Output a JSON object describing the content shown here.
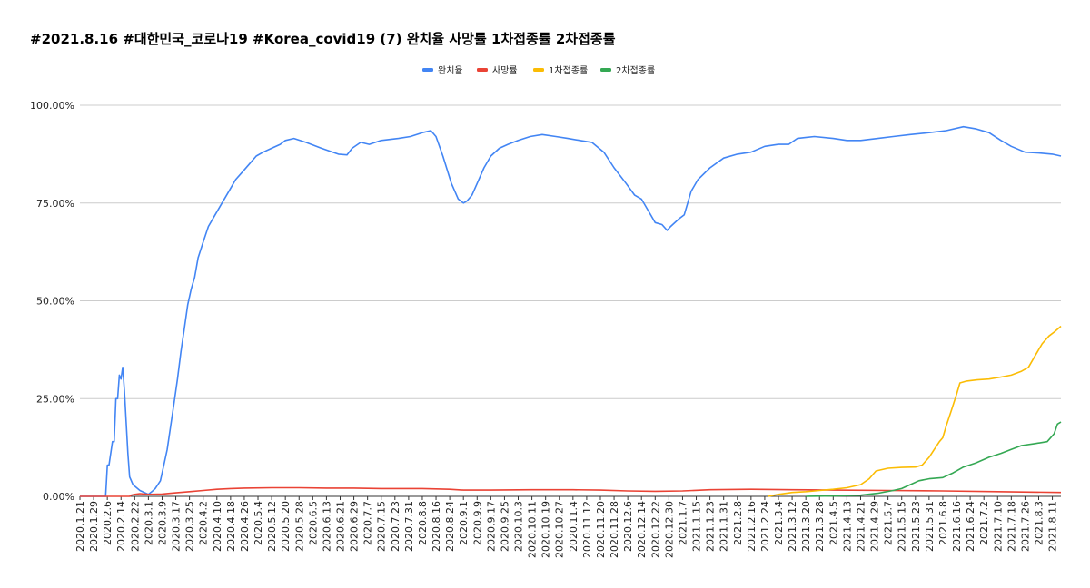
{
  "chart_data": {
    "type": "line",
    "title": "#2021.8.16 #대한민국_코로나19 #Korea_covid19 (7) 완치율 사망률 1차접종률 2차접종률",
    "xlabel": "",
    "ylabel": "",
    "ylim": [
      0,
      1
    ],
    "y_ticks": [
      "0.00%",
      "25.00%",
      "50.00%",
      "75.00%",
      "100.00%"
    ],
    "grid": true,
    "legend_position": "top-center",
    "x_labels": [
      "2020.1.21",
      "2020.1.29",
      "2020.2.6",
      "2020.2.14",
      "2020.2.22",
      "2020.3.1",
      "2020.3.9",
      "2020.3.17",
      "2020.3.25",
      "2020.4.2",
      "2020.4.10",
      "2020.4.18",
      "2020.4.26",
      "2020.5.4",
      "2020.5.12",
      "2020.5.20",
      "2020.5.28",
      "2020.6.5",
      "2020.6.13",
      "2020.6.21",
      "2020.6.29",
      "2020.7.7",
      "2020.7.15",
      "2020.7.23",
      "2020.7.31",
      "2020.8.8",
      "2020.8.16",
      "2020.8.24",
      "2020.9.1",
      "2020.9.9",
      "2020.9.17",
      "2020.9.25",
      "2020.10.3",
      "2020.10.11",
      "2020.10.19",
      "2020.10.27",
      "2020.11.4",
      "2020.11.12",
      "2020.11.20",
      "2020.11.28",
      "2020.12.6",
      "2020.12.14",
      "2020.12.22",
      "2020.12.30",
      "2021.1.7",
      "2021.1.15",
      "2021.1.23",
      "2021.1.31",
      "2021.2.8",
      "2021.2.16",
      "2021.2.24",
      "2021.3.4",
      "2021.3.12",
      "2021.3.20",
      "2021.3.28",
      "2021.4.5",
      "2021.4.13",
      "2021.4.21",
      "2021.4.29",
      "2021.5.7",
      "2021.5.15",
      "2021.5.23",
      "2021.5.31",
      "2021.6.8",
      "2021.6.16",
      "2021.6.24",
      "2021.7.2",
      "2021.7.10",
      "2021.7.18",
      "2021.7.26",
      "2021.8.3",
      "2021.8.11"
    ],
    "x_range": [
      "2020.1.21",
      "2021.8.16"
    ],
    "series": [
      {
        "name": "완치율",
        "color": "#4285f4",
        "points": [
          [
            "2020.1.21",
            0
          ],
          [
            "2020.2.5",
            0
          ],
          [
            "2020.2.6",
            0.08
          ],
          [
            "2020.2.7",
            0.08
          ],
          [
            "2020.2.9",
            0.14
          ],
          [
            "2020.2.10",
            0.14
          ],
          [
            "2020.2.11",
            0.25
          ],
          [
            "2020.2.12",
            0.25
          ],
          [
            "2020.2.13",
            0.31
          ],
          [
            "2020.2.14",
            0.3
          ],
          [
            "2020.2.15",
            0.33
          ],
          [
            "2020.2.16",
            0.27
          ],
          [
            "2020.2.17",
            0.19
          ],
          [
            "2020.2.18",
            0.11
          ],
          [
            "2020.2.19",
            0.05
          ],
          [
            "2020.2.21",
            0.03
          ],
          [
            "2020.2.25",
            0.015
          ],
          [
            "2020.3.1",
            0.005
          ],
          [
            "2020.3.3",
            0.012
          ],
          [
            "2020.3.5",
            0.02
          ],
          [
            "2020.3.8",
            0.04
          ],
          [
            "2020.3.10",
            0.08
          ],
          [
            "2020.3.12",
            0.12
          ],
          [
            "2020.3.14",
            0.18
          ],
          [
            "2020.3.16",
            0.24
          ],
          [
            "2020.3.18",
            0.3
          ],
          [
            "2020.3.20",
            0.37
          ],
          [
            "2020.3.22",
            0.43
          ],
          [
            "2020.3.24",
            0.49
          ],
          [
            "2020.3.26",
            0.53
          ],
          [
            "2020.3.28",
            0.56
          ],
          [
            "2020.3.30",
            0.61
          ],
          [
            "2020.4.2",
            0.65
          ],
          [
            "2020.4.5",
            0.69
          ],
          [
            "2020.4.9",
            0.72
          ],
          [
            "2020.4.13",
            0.75
          ],
          [
            "2020.4.17",
            0.78
          ],
          [
            "2020.4.21",
            0.81
          ],
          [
            "2020.4.25",
            0.83
          ],
          [
            "2020.4.29",
            0.85
          ],
          [
            "2020.5.3",
            0.87
          ],
          [
            "2020.5.7",
            0.88
          ],
          [
            "2020.5.12",
            0.89
          ],
          [
            "2020.5.17",
            0.9
          ],
          [
            "2020.5.20",
            0.91
          ],
          [
            "2020.5.25",
            0.915
          ],
          [
            "2020.6.1",
            0.905
          ],
          [
            "2020.6.10",
            0.89
          ],
          [
            "2020.6.20",
            0.875
          ],
          [
            "2020.6.25",
            0.873
          ],
          [
            "2020.6.28",
            0.89
          ],
          [
            "2020.7.3",
            0.905
          ],
          [
            "2020.7.8",
            0.9
          ],
          [
            "2020.7.15",
            0.91
          ],
          [
            "2020.7.25",
            0.915
          ],
          [
            "2020.8.1",
            0.92
          ],
          [
            "2020.8.8",
            0.93
          ],
          [
            "2020.8.13",
            0.935
          ],
          [
            "2020.8.16",
            0.92
          ],
          [
            "2020.8.20",
            0.87
          ],
          [
            "2020.8.25",
            0.8
          ],
          [
            "2020.8.29",
            0.76
          ],
          [
            "2020.9.1",
            0.75
          ],
          [
            "2020.9.3",
            0.755
          ],
          [
            "2020.9.6",
            0.77
          ],
          [
            "2020.9.9",
            0.8
          ],
          [
            "2020.9.13",
            0.84
          ],
          [
            "2020.9.17",
            0.87
          ],
          [
            "2020.9.22",
            0.89
          ],
          [
            "2020.9.27",
            0.9
          ],
          [
            "2020.10.3",
            0.91
          ],
          [
            "2020.10.10",
            0.92
          ],
          [
            "2020.10.17",
            0.925
          ],
          [
            "2020.10.25",
            0.92
          ],
          [
            "2020.11.1",
            0.915
          ],
          [
            "2020.11.8",
            0.91
          ],
          [
            "2020.11.15",
            0.905
          ],
          [
            "2020.11.22",
            0.88
          ],
          [
            "2020.11.28",
            0.84
          ],
          [
            "2020.12.5",
            0.8
          ],
          [
            "2020.12.10",
            0.77
          ],
          [
            "2020.12.14",
            0.76
          ],
          [
            "2020.12.18",
            0.73
          ],
          [
            "2020.12.22",
            0.7
          ],
          [
            "2020.12.26",
            0.695
          ],
          [
            "2020.12.29",
            0.68
          ],
          [
            "2020.12.31",
            0.69
          ],
          [
            "2021.1.5",
            0.71
          ],
          [
            "2021.1.8",
            0.72
          ],
          [
            "2021.1.12",
            0.78
          ],
          [
            "2021.1.16",
            0.81
          ],
          [
            "2021.1.23",
            0.84
          ],
          [
            "2021.1.31",
            0.865
          ],
          [
            "2021.2.8",
            0.875
          ],
          [
            "2021.2.16",
            0.88
          ],
          [
            "2021.2.24",
            0.895
          ],
          [
            "2021.3.4",
            0.9
          ],
          [
            "2021.3.10",
            0.9
          ],
          [
            "2021.3.15",
            0.915
          ],
          [
            "2021.3.25",
            0.92
          ],
          [
            "2021.4.5",
            0.915
          ],
          [
            "2021.4.13",
            0.91
          ],
          [
            "2021.4.21",
            0.91
          ],
          [
            "2021.5.1",
            0.915
          ],
          [
            "2021.5.10",
            0.92
          ],
          [
            "2021.5.20",
            0.925
          ],
          [
            "2021.5.31",
            0.93
          ],
          [
            "2021.6.10",
            0.935
          ],
          [
            "2021.6.20",
            0.945
          ],
          [
            "2021.6.27",
            0.94
          ],
          [
            "2021.7.5",
            0.93
          ],
          [
            "2021.7.12",
            0.91
          ],
          [
            "2021.7.18",
            0.895
          ],
          [
            "2021.7.26",
            0.88
          ],
          [
            "2021.8.3",
            0.878
          ],
          [
            "2021.8.11",
            0.875
          ],
          [
            "2021.8.16",
            0.87
          ]
        ]
      },
      {
        "name": "사망률",
        "color": "#ea4335",
        "points": [
          [
            "2020.1.21",
            0
          ],
          [
            "2020.2.19",
            0
          ],
          [
            "2020.2.20",
            0.003
          ],
          [
            "2020.2.22",
            0.005
          ],
          [
            "2020.2.25",
            0.007
          ],
          [
            "2020.3.1",
            0.005
          ],
          [
            "2020.3.9",
            0.006
          ],
          [
            "2020.3.17",
            0.009
          ],
          [
            "2020.3.25",
            0.012
          ],
          [
            "2020.4.2",
            0.015
          ],
          [
            "2020.4.10",
            0.018
          ],
          [
            "2020.4.18",
            0.02
          ],
          [
            "2020.4.26",
            0.021
          ],
          [
            "2020.5.12",
            0.022
          ],
          [
            "2020.5.28",
            0.022
          ],
          [
            "2020.6.13",
            0.021
          ],
          [
            "2020.6.29",
            0.021
          ],
          [
            "2020.7.15",
            0.02
          ],
          [
            "2020.8.8",
            0.02
          ],
          [
            "2020.8.24",
            0.018
          ],
          [
            "2020.9.1",
            0.016
          ],
          [
            "2020.9.17",
            0.016
          ],
          [
            "2020.10.11",
            0.017
          ],
          [
            "2020.11.4",
            0.017
          ],
          [
            "2020.11.20",
            0.016
          ],
          [
            "2020.12.6",
            0.014
          ],
          [
            "2020.12.22",
            0.013
          ],
          [
            "2021.1.7",
            0.014
          ],
          [
            "2021.1.23",
            0.017
          ],
          [
            "2021.2.16",
            0.018
          ],
          [
            "2021.3.12",
            0.017
          ],
          [
            "2021.4.5",
            0.016
          ],
          [
            "2021.5.7",
            0.015
          ],
          [
            "2021.6.8",
            0.014
          ],
          [
            "2021.7.10",
            0.012
          ],
          [
            "2021.8.16",
            0.01
          ]
        ]
      },
      {
        "name": "1차접종률",
        "color": "#fbbc04",
        "points": [
          [
            "2021.2.26",
            0
          ],
          [
            "2021.3.4",
            0.005
          ],
          [
            "2021.3.12",
            0.01
          ],
          [
            "2021.3.20",
            0.012
          ],
          [
            "2021.3.28",
            0.015
          ],
          [
            "2021.4.5",
            0.018
          ],
          [
            "2021.4.13",
            0.022
          ],
          [
            "2021.4.21",
            0.03
          ],
          [
            "2021.4.26",
            0.045
          ],
          [
            "2021.4.30",
            0.065
          ],
          [
            "2021.5.7",
            0.072
          ],
          [
            "2021.5.15",
            0.074
          ],
          [
            "2021.5.23",
            0.075
          ],
          [
            "2021.5.27",
            0.08
          ],
          [
            "2021.5.31",
            0.1
          ],
          [
            "2021.6.3",
            0.12
          ],
          [
            "2021.6.6",
            0.14
          ],
          [
            "2021.6.8",
            0.15
          ],
          [
            "2021.6.10",
            0.18
          ],
          [
            "2021.6.13",
            0.22
          ],
          [
            "2021.6.16",
            0.26
          ],
          [
            "2021.6.18",
            0.29
          ],
          [
            "2021.6.22",
            0.295
          ],
          [
            "2021.6.28",
            0.298
          ],
          [
            "2021.7.5",
            0.3
          ],
          [
            "2021.7.12",
            0.305
          ],
          [
            "2021.7.18",
            0.31
          ],
          [
            "2021.7.24",
            0.32
          ],
          [
            "2021.7.28",
            0.33
          ],
          [
            "2021.8.1",
            0.36
          ],
          [
            "2021.8.5",
            0.39
          ],
          [
            "2021.8.9",
            0.41
          ],
          [
            "2021.8.12",
            0.42
          ],
          [
            "2021.8.16",
            0.435
          ]
        ]
      },
      {
        "name": "2차접종률",
        "color": "#34a853",
        "points": [
          [
            "2021.3.20",
            0
          ],
          [
            "2021.4.5",
            0.001
          ],
          [
            "2021.4.21",
            0.003
          ],
          [
            "2021.5.1",
            0.008
          ],
          [
            "2021.5.10",
            0.015
          ],
          [
            "2021.5.15",
            0.02
          ],
          [
            "2021.5.20",
            0.03
          ],
          [
            "2021.5.25",
            0.04
          ],
          [
            "2021.5.31",
            0.045
          ],
          [
            "2021.6.8",
            0.048
          ],
          [
            "2021.6.14",
            0.06
          ],
          [
            "2021.6.20",
            0.075
          ],
          [
            "2021.6.27",
            0.085
          ],
          [
            "2021.7.5",
            0.1
          ],
          [
            "2021.7.12",
            0.11
          ],
          [
            "2021.7.18",
            0.12
          ],
          [
            "2021.7.24",
            0.13
          ],
          [
            "2021.8.1",
            0.135
          ],
          [
            "2021.8.8",
            0.14
          ],
          [
            "2021.8.12",
            0.16
          ],
          [
            "2021.8.14",
            0.185
          ],
          [
            "2021.8.16",
            0.19
          ]
        ]
      }
    ]
  }
}
